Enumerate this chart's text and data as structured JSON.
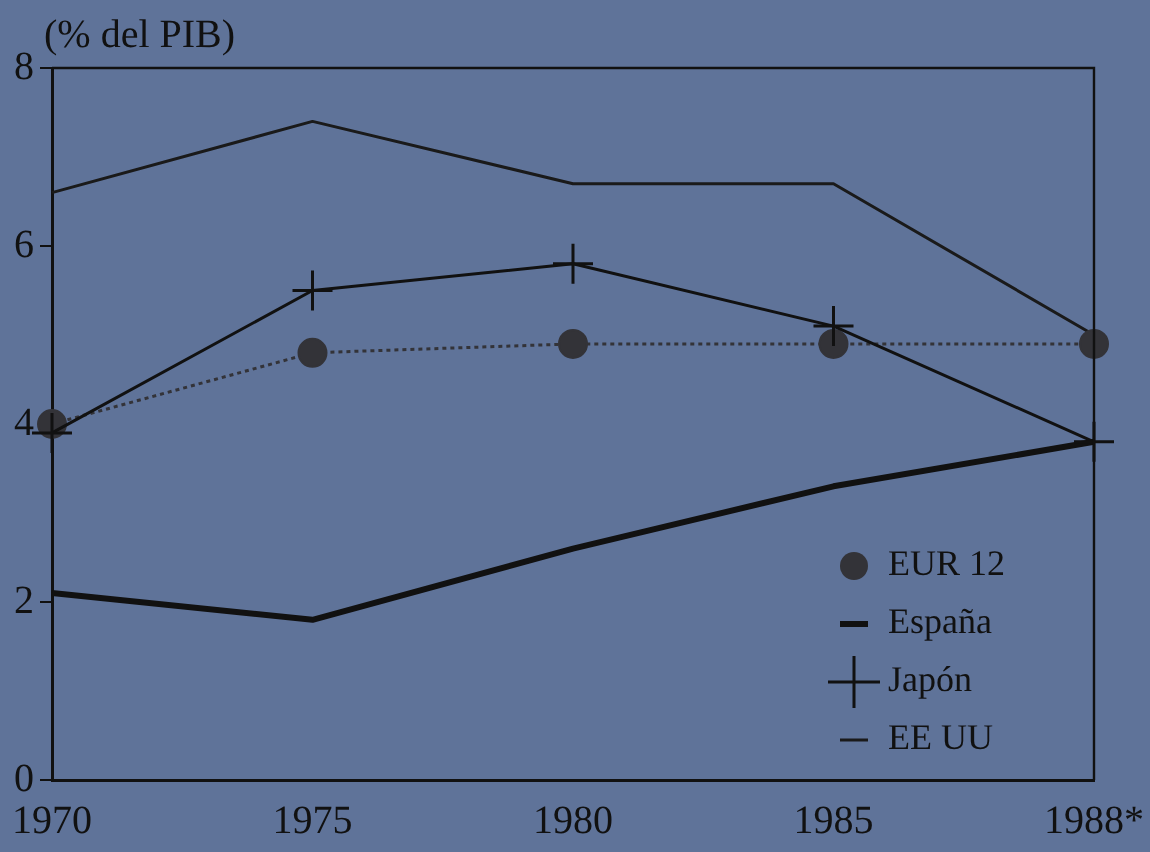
{
  "chart_data": {
    "type": "line",
    "ylabel": "(% del PIB)",
    "categories": [
      "1970",
      "1975",
      "1980",
      "1985",
      "1988*"
    ],
    "series": [
      {
        "name": "EUR 12",
        "color": "#333338",
        "marker": "circle",
        "line_style": "dotted",
        "values": [
          4.0,
          4.8,
          4.9,
          4.9,
          4.9
        ]
      },
      {
        "name": "España",
        "color": "#111111",
        "marker": "none",
        "values": [
          2.1,
          1.8,
          2.6,
          3.3,
          3.8
        ]
      },
      {
        "name": "Japón",
        "color": "#111111",
        "marker": "cross",
        "values": [
          3.9,
          5.5,
          5.8,
          5.1,
          3.8
        ]
      },
      {
        "name": "EE UU",
        "color": "#1a1a1a",
        "marker": "none",
        "values": [
          6.6,
          7.4,
          6.7,
          6.7,
          5.0
        ]
      }
    ],
    "ylim": [
      0,
      8
    ],
    "yticks": [
      0,
      2,
      4,
      6,
      8
    ],
    "grid": false,
    "legend": "bottom right"
  }
}
